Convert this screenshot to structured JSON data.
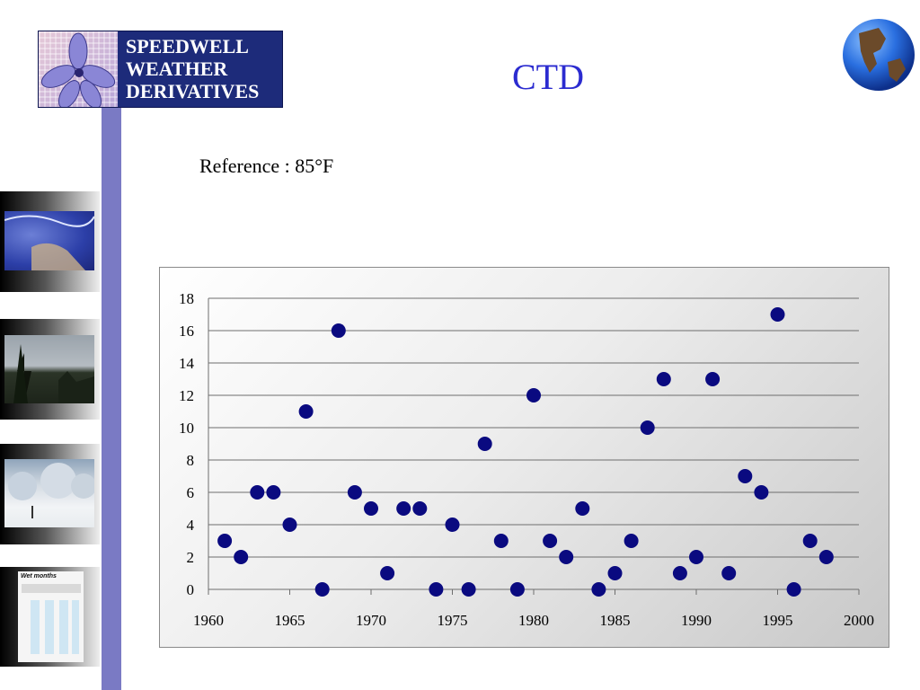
{
  "logo": {
    "lines": [
      "SPEEDWELL",
      "WEATHER",
      "DERIVATIVES"
    ],
    "brand_color": "#1d2b7a"
  },
  "slide": {
    "title": "CTD",
    "reference": "Reference : 85°F",
    "title_color": "#2b2bd0",
    "accent_bar_color": "#7a7ac4"
  },
  "sidebar": {
    "thumbnails": [
      {
        "icon": "weather-map-image"
      },
      {
        "icon": "forest-sky-image"
      },
      {
        "icon": "snowy-trees-image"
      },
      {
        "icon": "wet-months-infographic",
        "caption": "Wet months"
      }
    ]
  },
  "chart_data": {
    "type": "scatter",
    "xlabel": "",
    "ylabel": "",
    "xlim": [
      1960,
      2000
    ],
    "ylim": [
      0,
      18
    ],
    "x_ticks": [
      "1960",
      "1965",
      "1970",
      "1975",
      "1980",
      "1985",
      "1990",
      "1995",
      "2000"
    ],
    "y_ticks": [
      "0",
      "2",
      "4",
      "6",
      "8",
      "10",
      "12",
      "14",
      "16",
      "18"
    ],
    "grid": "horizontal",
    "marker_color": "#0a0a80",
    "series": [
      {
        "x": [
          1961,
          1962,
          1963,
          1964,
          1965,
          1966,
          1967,
          1968,
          1969,
          1970,
          1971,
          1972,
          1973,
          1974,
          1975,
          1976,
          1977,
          1978,
          1979,
          1980,
          1981,
          1982,
          1983,
          1984,
          1985,
          1986,
          1987,
          1988,
          1989,
          1990,
          1991,
          1992,
          1993,
          1994,
          1995,
          1996,
          1997,
          1998
        ],
        "y": [
          3,
          2,
          6,
          6,
          4,
          11,
          0,
          16,
          6,
          5,
          1,
          5,
          5,
          0,
          4,
          0,
          9,
          3,
          0,
          12,
          3,
          2,
          5,
          0,
          1,
          3,
          10,
          13,
          1,
          2,
          13,
          1,
          7,
          6,
          17,
          0,
          3,
          2
        ]
      }
    ]
  }
}
